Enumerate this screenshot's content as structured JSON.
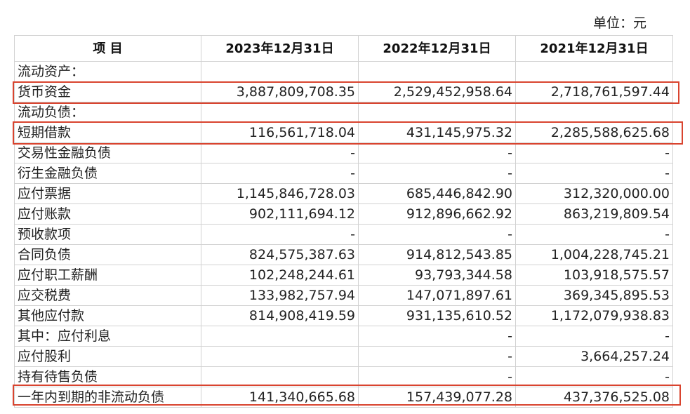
{
  "unit": "单位：元",
  "headers": [
    "项 目",
    "2023年12月31日",
    "2022年12月31日",
    "2021年12月31日"
  ],
  "rows": [
    {
      "item": "流动资产：",
      "v2023": "",
      "v2022": "",
      "v2021": ""
    },
    {
      "item": "货币资金",
      "v2023": "3,887,809,708.35",
      "v2022": "2,529,452,958.64",
      "v2021": "2,718,761,597.44"
    },
    {
      "item": "流动负债：",
      "v2023": "",
      "v2022": "",
      "v2021": ""
    },
    {
      "item": "短期借款",
      "v2023": "116,561,718.04",
      "v2022": "431,145,975.32",
      "v2021": "2,285,588,625.68"
    },
    {
      "item": "交易性金融负债",
      "v2023": "-",
      "v2022": "-",
      "v2021": "-"
    },
    {
      "item": "衍生金融负债",
      "v2023": "-",
      "v2022": "-",
      "v2021": "-"
    },
    {
      "item": "应付票据",
      "v2023": "1,145,846,728.03",
      "v2022": "685,446,842.90",
      "v2021": "312,320,000.00"
    },
    {
      "item": "应付账款",
      "v2023": "902,111,694.12",
      "v2022": "912,896,662.92",
      "v2021": "863,219,809.54"
    },
    {
      "item": "预收款项",
      "v2023": "-",
      "v2022": "-",
      "v2021": "-"
    },
    {
      "item": "合同负债",
      "v2023": "824,575,387.63",
      "v2022": "914,812,543.85",
      "v2021": "1,004,228,745.21"
    },
    {
      "item": "应付职工薪酬",
      "v2023": "102,248,244.61",
      "v2022": "93,793,344.58",
      "v2021": "103,918,575.57"
    },
    {
      "item": "应交税费",
      "v2023": "133,982,757.94",
      "v2022": "147,071,897.61",
      "v2021": "369,345,895.53"
    },
    {
      "item": "其他应付款",
      "v2023": "814,908,419.59",
      "v2022": "931,135,610.52",
      "v2021": "1,172,079,938.83"
    },
    {
      "item": "其中：应付利息",
      "v2023": "",
      "v2022": "-",
      "v2021": "-"
    },
    {
      "item": "应付股利",
      "v2023": "",
      "v2022": "-",
      "v2021": "3,664,257.24"
    },
    {
      "item": "持有待售负债",
      "v2023": "",
      "v2022": "-",
      "v2021": "-"
    },
    {
      "item": "一年内到期的非流动负债",
      "v2023": "141,340,665.68",
      "v2022": "157,439,077.28",
      "v2021": "437,376,525.08"
    }
  ],
  "highlighted_items": [
    "货币资金",
    "短期借款",
    "一年内到期的非流动负债"
  ],
  "highlight_color": "#d9442f"
}
